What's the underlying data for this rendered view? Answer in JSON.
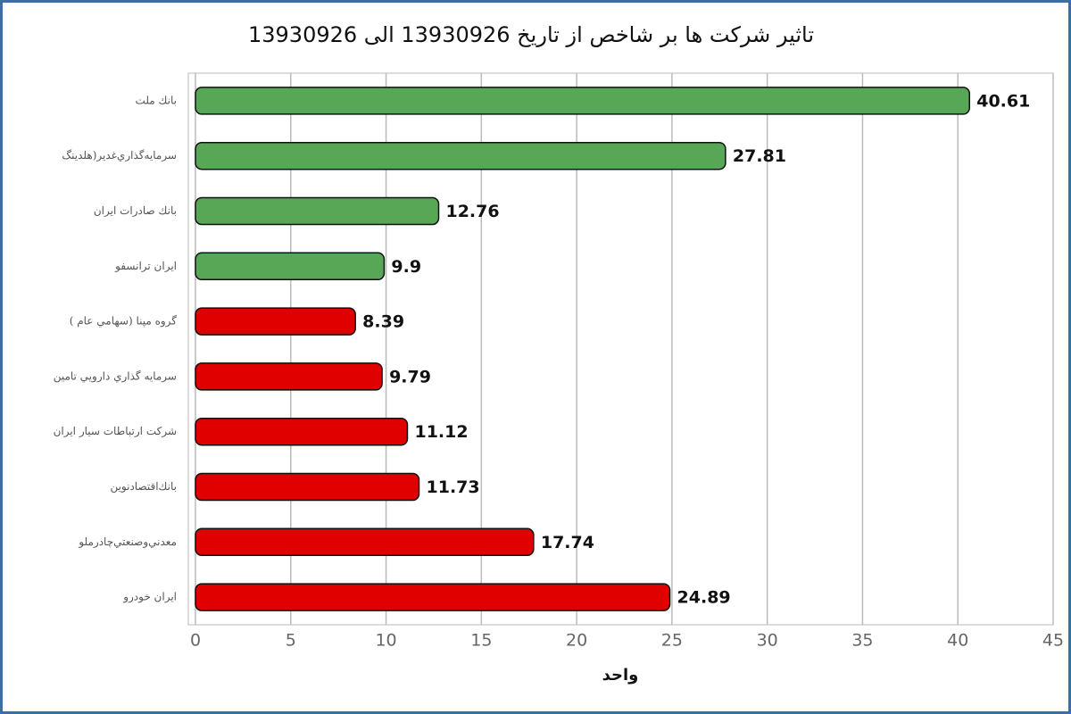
{
  "chart_data": {
    "type": "bar",
    "orientation": "horizontal",
    "title": "تاثیر شرکت ها بر شاخص از تاریخ 13930926 الی 13930926",
    "xlabel": "واحد",
    "categories": [
      "بانك ملت",
      "سرمايه‌گذاري‌غدير(هلدينگ",
      "بانك صادرات ايران",
      "ايران ترانسفو",
      "گروه مپنا (سهامي عام )",
      "سرمايه گذاري دارويي تامين",
      "شركت ارتباطات سيار ايران",
      "بانك‌اقتصادنوين",
      "معدني‌وصنعتي‌چادرملو",
      "ايران خودرو"
    ],
    "values": [
      40.61,
      27.81,
      12.76,
      9.9,
      8.39,
      9.79,
      11.12,
      11.73,
      17.74,
      24.89
    ],
    "colors": [
      "#57a757",
      "#57a757",
      "#57a757",
      "#57a757",
      "#e00000",
      "#e00000",
      "#e00000",
      "#e00000",
      "#e00000",
      "#e00000"
    ],
    "xlim": [
      0,
      45
    ],
    "xticks": [
      0,
      5,
      10,
      15,
      20,
      25,
      30,
      35,
      40,
      45
    ],
    "grid": true
  }
}
